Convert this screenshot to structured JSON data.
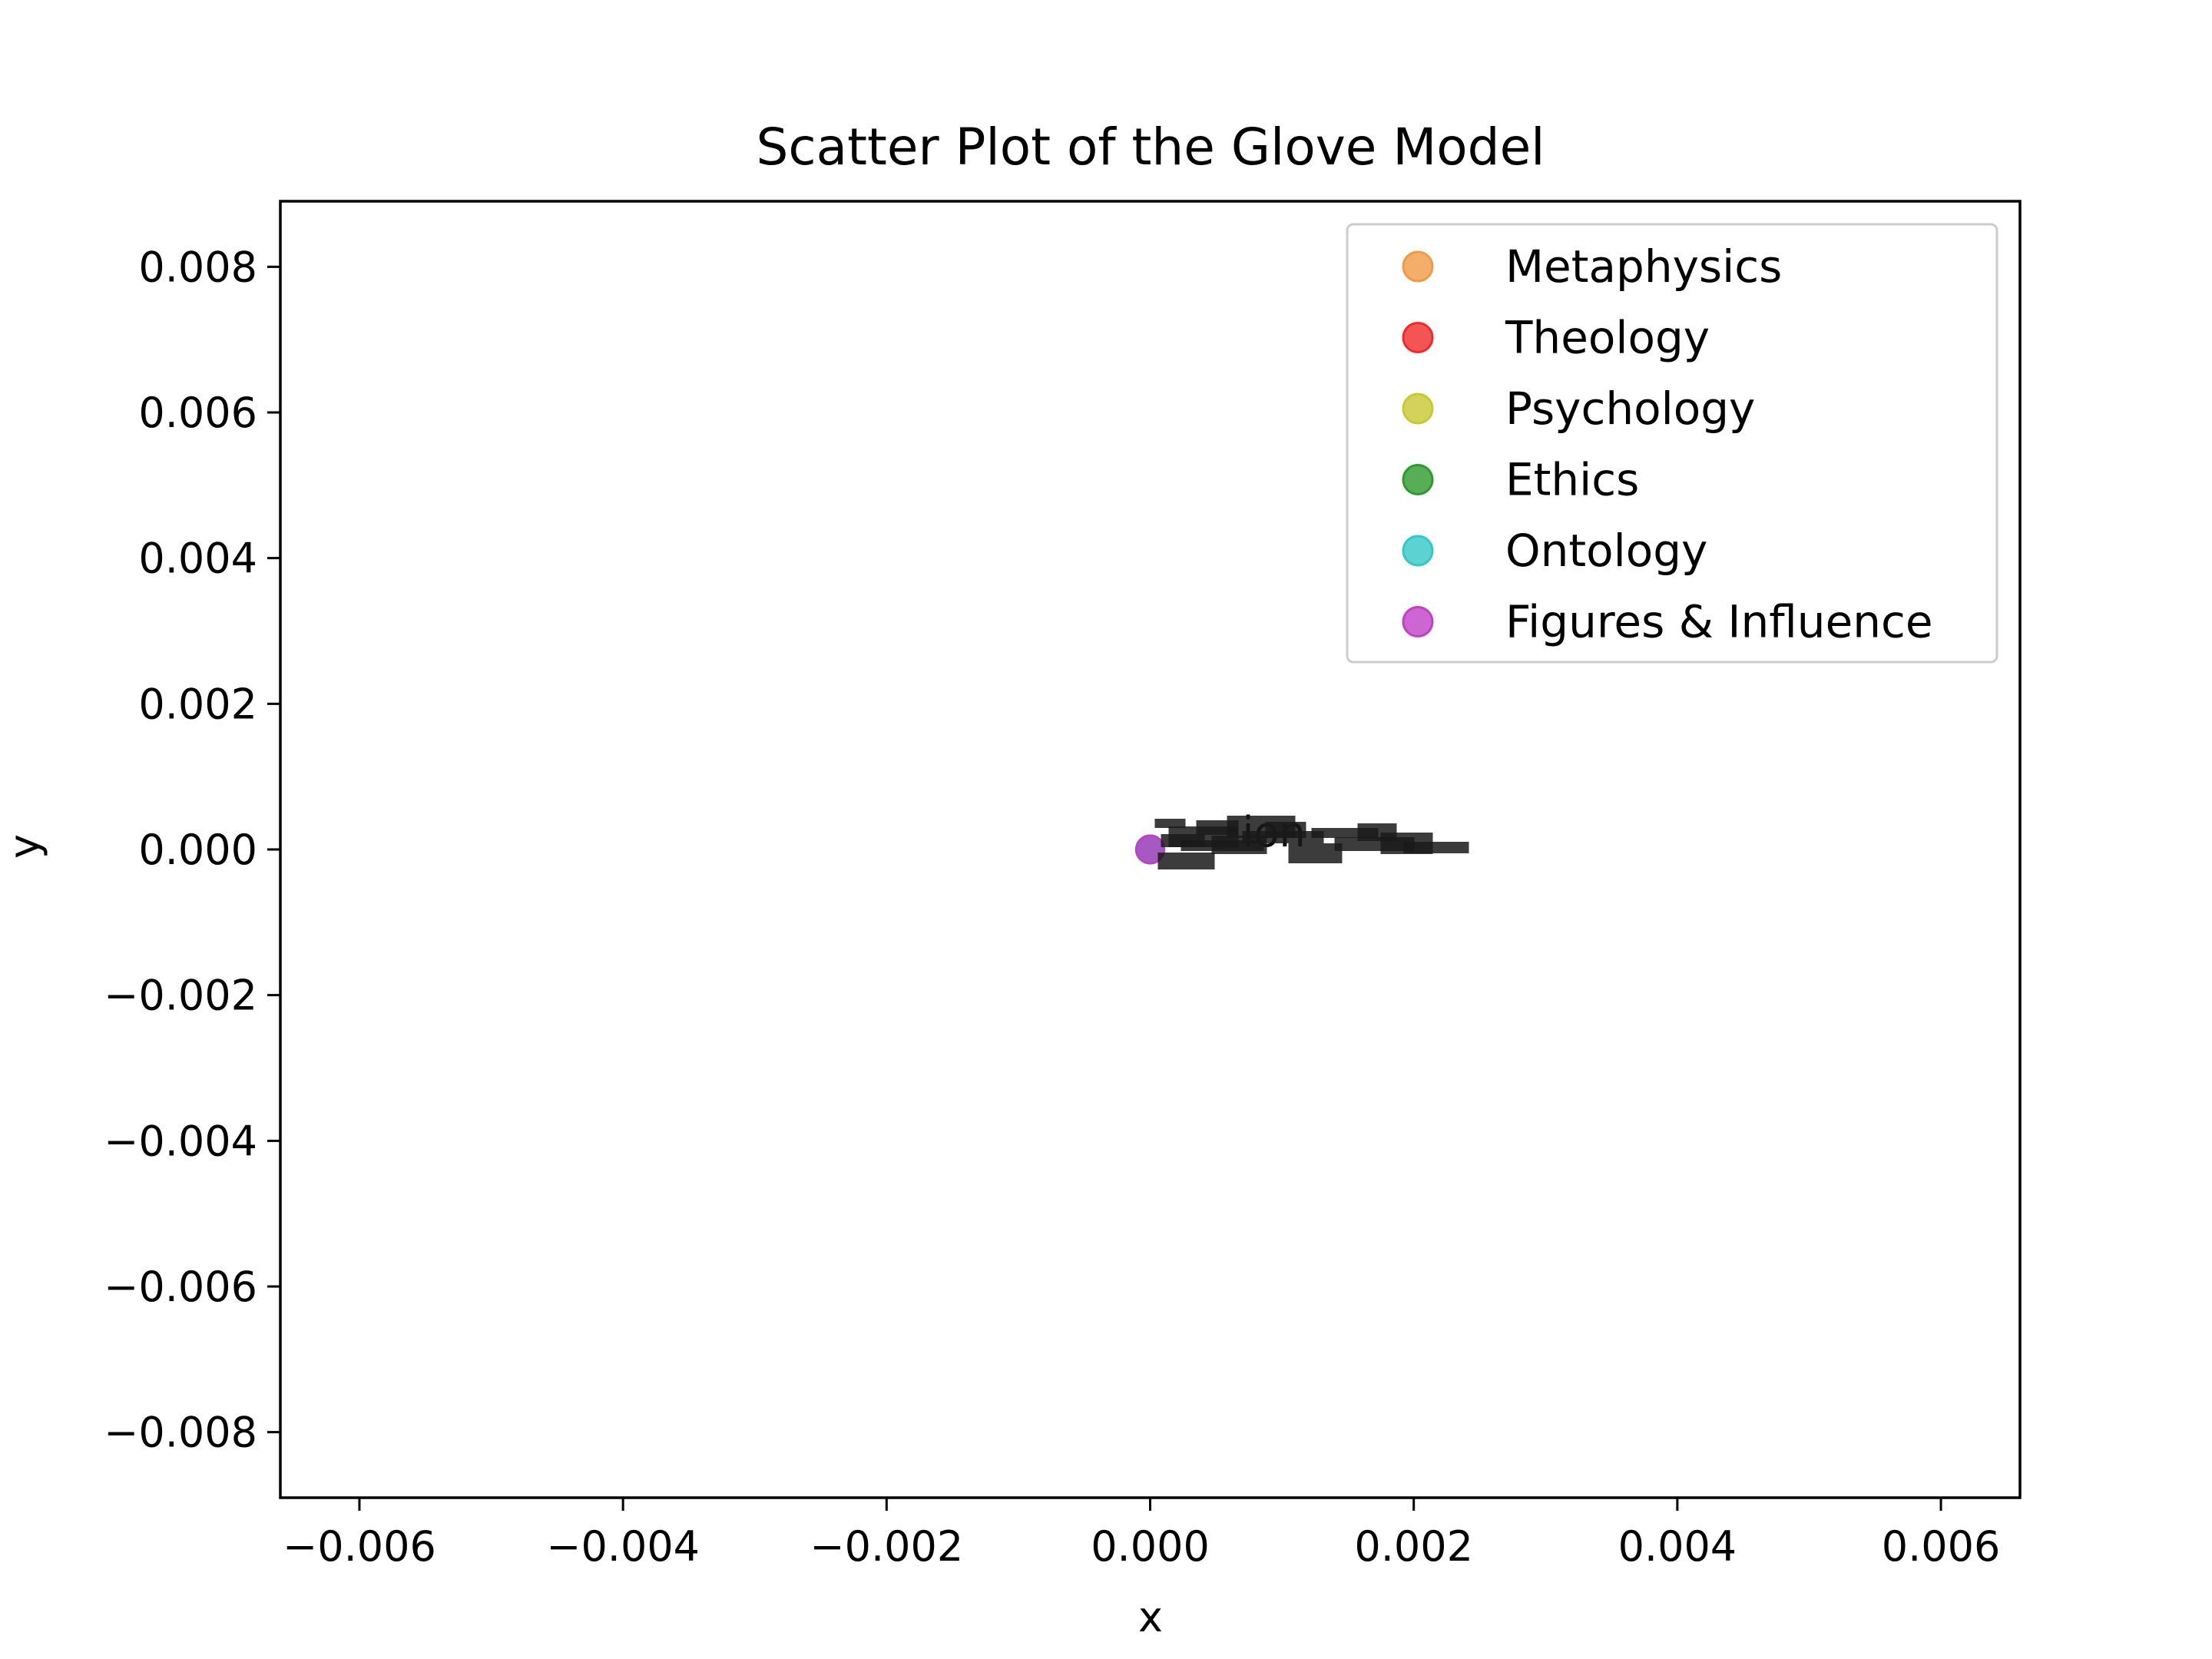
{
  "chart_data": {
    "type": "scatter",
    "title": "Scatter Plot of the Glove Model",
    "xlabel": "x",
    "ylabel": "y",
    "xlim": [
      -0.0066,
      0.0066
    ],
    "ylim": [
      -0.0089,
      0.0089
    ],
    "xticks": [
      -0.006,
      -0.004,
      -0.002,
      0.0,
      0.002,
      0.004,
      0.006
    ],
    "yticks": [
      0.008,
      0.006,
      0.004,
      0.002,
      0.0,
      -0.002,
      -0.004,
      -0.006,
      -0.008
    ],
    "xtick_labels": [
      "−0.006",
      "−0.004",
      "−0.002",
      "0.000",
      "0.002",
      "0.004",
      "0.006"
    ],
    "ytick_labels": [
      "0.008",
      "0.006",
      "0.004",
      "0.002",
      "0.000",
      "−0.002",
      "−0.004",
      "−0.006",
      "−0.008"
    ],
    "grid": false,
    "legend_position": "top-right",
    "series": [
      {
        "name": "Metaphysics",
        "color": "#f09a45",
        "points": [
          {
            "x": 0.0,
            "y": 0.0
          }
        ]
      },
      {
        "name": "Theology",
        "color": "#f02a2a",
        "points": [
          {
            "x": 0.0,
            "y": 0.0
          }
        ]
      },
      {
        "name": "Psychology",
        "color": "#c8c831",
        "points": [
          {
            "x": 0.0,
            "y": 0.0
          }
        ]
      },
      {
        "name": "Ethics",
        "color": "#2d9a2d",
        "points": [
          {
            "x": 0.0,
            "y": 0.0
          }
        ]
      },
      {
        "name": "Ontology",
        "color": "#33c8c8",
        "points": [
          {
            "x": 0.0,
            "y": 0.0
          }
        ]
      },
      {
        "name": "Figures & Influence",
        "color": "#c040c8",
        "points": [
          {
            "x": 0.0,
            "y": 0.0
          }
        ]
      }
    ],
    "annotations": [
      "ion"
    ]
  }
}
